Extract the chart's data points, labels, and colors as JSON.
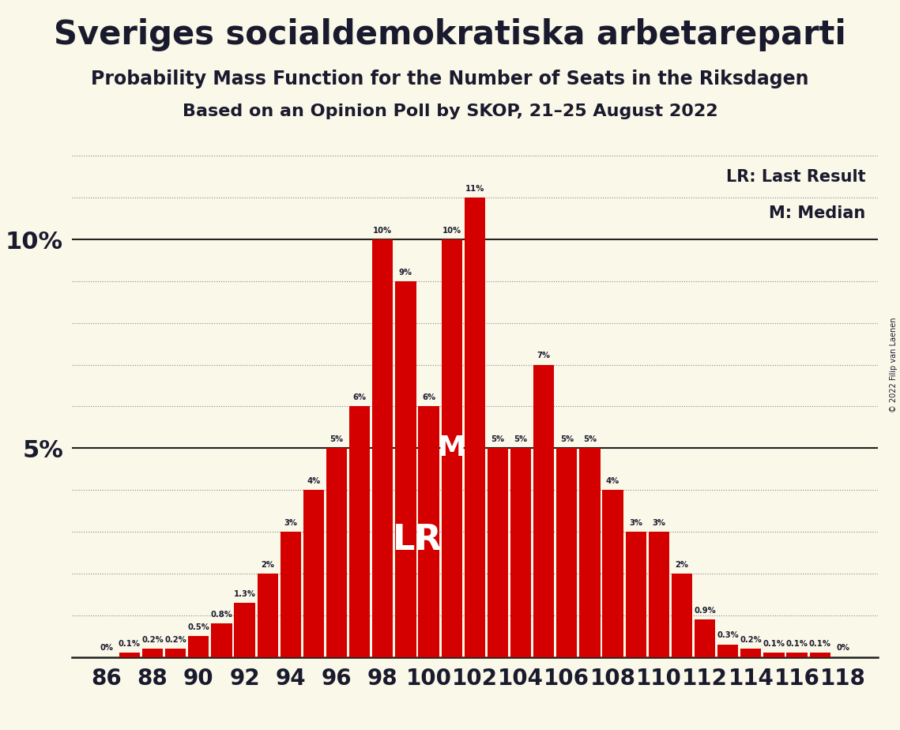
{
  "title": "Sveriges socialdemokratiska arbetareparti",
  "subtitle1": "Probability Mass Function for the Number of Seats in the Riksdagen",
  "subtitle2": "Based on an Opinion Poll by SKOP, 21–25 August 2022",
  "copyright": "© 2022 Filip van Laenen",
  "seats": [
    86,
    87,
    88,
    89,
    90,
    91,
    92,
    93,
    94,
    95,
    96,
    97,
    98,
    99,
    100,
    101,
    102,
    103,
    104,
    105,
    106,
    107,
    108,
    109,
    110,
    111,
    112,
    113,
    114,
    115,
    116,
    117,
    118
  ],
  "probabilities": [
    0.0,
    0.1,
    0.2,
    0.2,
    0.5,
    0.8,
    1.3,
    2.0,
    3.0,
    4.0,
    5.0,
    6.0,
    10.0,
    9.0,
    6.0,
    10.0,
    11.0,
    5.0,
    5.0,
    7.0,
    5.0,
    5.0,
    4.0,
    3.0,
    3.0,
    2.0,
    0.9,
    0.3,
    0.2,
    0.1,
    0.1,
    0.1,
    0.0
  ],
  "bar_color": "#d40000",
  "background_color": "#faf8e8",
  "text_color": "#1a1a2e",
  "ylim": [
    0,
    12.5
  ],
  "lr_seat": 100,
  "median_seat": 101,
  "lr_label": "LR",
  "median_label": "M",
  "legend_lr": "LR: Last Result",
  "legend_m": "M: Median",
  "xtick_seats": [
    86,
    88,
    90,
    92,
    94,
    96,
    98,
    100,
    102,
    104,
    106,
    108,
    110,
    112,
    114,
    116,
    118
  ],
  "grid_yticks": [
    1,
    2,
    3,
    4,
    6,
    7,
    8,
    9,
    11,
    12
  ],
  "solid_yticks": [
    5,
    10
  ]
}
